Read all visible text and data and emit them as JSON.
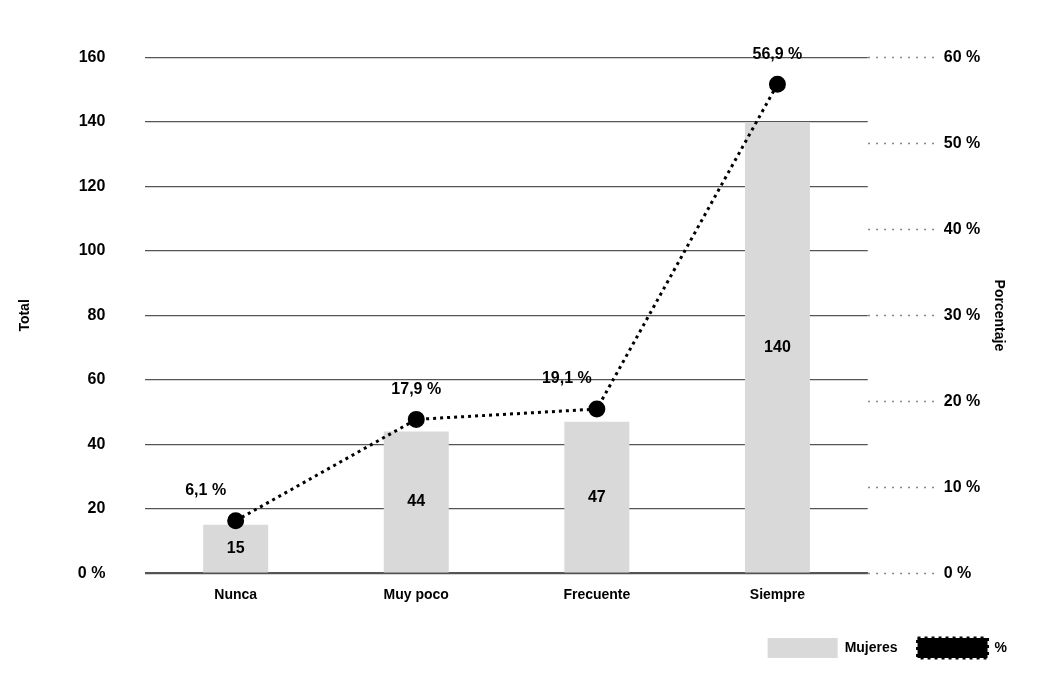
{
  "chart_data": {
    "type": "bar",
    "categories": [
      "Nunca",
      "Muy poco",
      "Frecuente",
      "Siempre"
    ],
    "series": [
      {
        "name": "Mujeres",
        "color": "#d9d9d9",
        "values": [
          15,
          44,
          47,
          140
        ],
        "value_labels": [
          "15",
          "44",
          "47",
          "140"
        ]
      },
      {
        "name": "%",
        "type": "line",
        "axis": "y2",
        "color": "#000000",
        "values": [
          6.1,
          17.9,
          19.1,
          56.9
        ],
        "value_labels": [
          "6,1 %",
          "17,9 %",
          "19,1 %",
          "56,9 %"
        ]
      }
    ],
    "ylabel": "Total",
    "y2label": "Porcentaje",
    "ylim": [
      0,
      160
    ],
    "yticks": [
      {
        "value": 0,
        "label": "0 %"
      },
      20,
      40,
      60,
      80,
      100,
      120,
      140,
      160
    ],
    "y2lim": [
      0,
      60
    ],
    "y2ticks": [
      {
        "value": 0,
        "label": "0 %"
      },
      {
        "value": 10,
        "label": "10 %"
      },
      {
        "value": 20,
        "label": "20 %"
      },
      {
        "value": 30,
        "label": "30 %"
      },
      {
        "value": 40,
        "label": "40 %"
      },
      {
        "value": 50,
        "label": "50 %"
      },
      {
        "value": 60,
        "label": "60 %"
      }
    ],
    "grid": "y",
    "legend": "bottom right",
    "marker": "circle",
    "line_style": "dotted"
  }
}
